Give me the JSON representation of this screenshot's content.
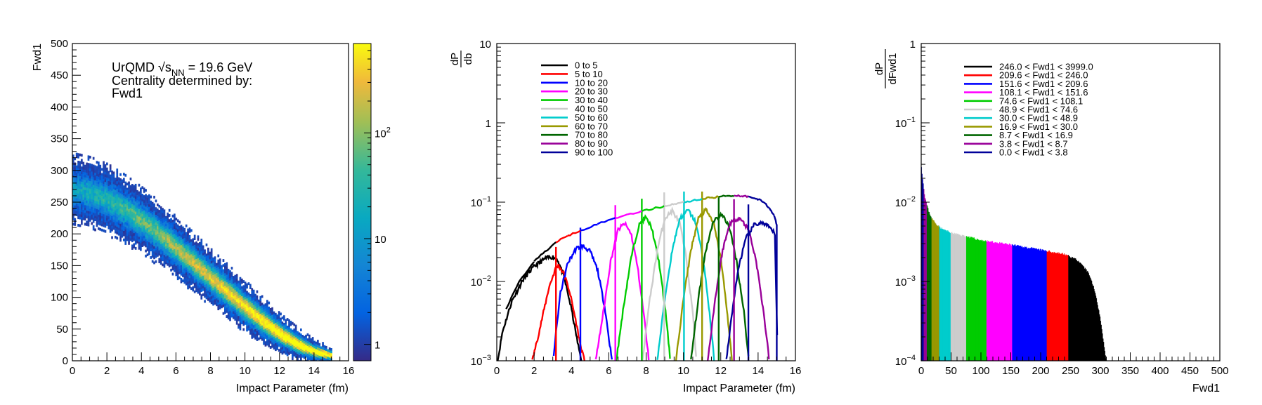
{
  "chart_data": [
    {
      "type": "heatmap",
      "xlabel": "Impact Parameter (fm)",
      "ylabel": "Fwd1",
      "xlim": [
        0,
        16
      ],
      "ylim": [
        0,
        500
      ],
      "x_ticks": [
        "0",
        "2",
        "4",
        "6",
        "8",
        "10",
        "12",
        "14",
        "16"
      ],
      "y_ticks": [
        "0",
        "50",
        "100",
        "150",
        "200",
        "250",
        "300",
        "350",
        "400",
        "450",
        "500"
      ],
      "annotation": {
        "line1_prefix": "UrQMD ",
        "sqrt_s": "s",
        "sub": "NN",
        "line1_suffix": " = 19.6 GeV",
        "line2": "Centrality determined by:",
        "line3": "Fwd1"
      },
      "colorbar": {
        "scale": "log",
        "range": [
          0.7,
          700
        ],
        "ticks": [
          {
            "v": 1,
            "label": "1"
          },
          {
            "v": 10,
            "label": "10"
          },
          {
            "v": 100,
            "base": "10",
            "exp": "2"
          }
        ]
      },
      "band": {
        "b": [
          0,
          1,
          2,
          3,
          4,
          5,
          6,
          7,
          8,
          9,
          10,
          11,
          12,
          13,
          14,
          15
        ],
        "center": [
          272,
          266,
          255,
          240,
          222,
          202,
          179,
          156,
          132,
          109,
          86,
          64,
          44,
          28,
          16,
          10
        ],
        "half_width": [
          30,
          30,
          30,
          29,
          28,
          27,
          26,
          25,
          24,
          23,
          22,
          20,
          17,
          14,
          10,
          7
        ]
      }
    },
    {
      "type": "line",
      "scale_y": "log",
      "xlabel": "Impact Parameter (fm)",
      "ylabel_num": "dP",
      "ylabel_den": "db",
      "xlim": [
        0,
        16
      ],
      "ylim": [
        0.001,
        10
      ],
      "x_ticks": [
        "0",
        "2",
        "4",
        "6",
        "8",
        "10",
        "12",
        "14",
        "16"
      ],
      "y_ticks": [
        {
          "v": 0.001,
          "base": "10",
          "exp": "−3"
        },
        {
          "v": 0.01,
          "base": "10",
          "exp": "−2"
        },
        {
          "v": 0.1,
          "base": "10",
          "exp": "−1"
        },
        {
          "v": 1,
          "label": "1"
        },
        {
          "v": 10,
          "label": "10"
        }
      ],
      "legend_position": "top-left",
      "series": [
        {
          "name": "0 to 5",
          "color": "#000000",
          "points": [
            [
              0.05,
              0.001
            ],
            [
              0.3,
              0.0023
            ],
            [
              0.8,
              0.0056
            ],
            [
              1.4,
              0.0105
            ],
            [
              2.0,
              0.0155
            ],
            [
              2.6,
              0.0195
            ],
            [
              3.0,
              0.0205
            ],
            [
              3.25,
              0.019
            ],
            [
              3.6,
              0.0115
            ],
            [
              4.0,
              0.0045
            ],
            [
              4.35,
              0.0016
            ],
            [
              4.55,
              0.001
            ]
          ]
        },
        {
          "name": "5 to 10",
          "color": "#ff0000",
          "points": [
            [
              1.9,
              0.001
            ],
            [
              2.3,
              0.0025
            ],
            [
              2.8,
              0.0085
            ],
            [
              3.15,
              0.0145
            ],
            [
              3.3,
              0.016
            ],
            [
              3.6,
              0.0125
            ],
            [
              3.9,
              0.0075
            ],
            [
              4.2,
              0.0035
            ],
            [
              4.5,
              0.0015
            ],
            [
              4.7,
              0.001
            ]
          ]
        },
        {
          "name": "10 to 20",
          "color": "#0000ff",
          "points": [
            [
              3.05,
              0.0012
            ],
            [
              3.4,
              0.007
            ],
            [
              3.8,
              0.017
            ],
            [
              4.25,
              0.026
            ],
            [
              4.6,
              0.028
            ],
            [
              5.0,
              0.024
            ],
            [
              5.4,
              0.014
            ],
            [
              5.8,
              0.0045
            ],
            [
              6.05,
              0.0016
            ],
            [
              6.2,
              0.001
            ]
          ]
        },
        {
          "name": "20 to 30",
          "color": "#ff00ff",
          "points": [
            [
              5.3,
              0.001
            ],
            [
              5.7,
              0.004
            ],
            [
              6.1,
              0.018
            ],
            [
              6.5,
              0.045
            ],
            [
              6.85,
              0.054
            ],
            [
              7.2,
              0.04
            ],
            [
              7.55,
              0.015
            ],
            [
              7.9,
              0.0035
            ],
            [
              8.15,
              0.001
            ]
          ]
        },
        {
          "name": "30 to 40",
          "color": "#00cc00",
          "points": [
            [
              6.4,
              0.001
            ],
            [
              6.8,
              0.005
            ],
            [
              7.2,
              0.02
            ],
            [
              7.6,
              0.05
            ],
            [
              7.95,
              0.065
            ],
            [
              8.3,
              0.048
            ],
            [
              8.7,
              0.017
            ],
            [
              9.05,
              0.004
            ],
            [
              9.3,
              0.001
            ]
          ]
        },
        {
          "name": "40 to 50",
          "color": "#cccccc",
          "points": [
            [
              7.8,
              0.001
            ],
            [
              8.2,
              0.006
            ],
            [
              8.6,
              0.025
            ],
            [
              9.0,
              0.062
            ],
            [
              9.4,
              0.078
            ],
            [
              9.8,
              0.055
            ],
            [
              10.15,
              0.02
            ],
            [
              10.5,
              0.004
            ],
            [
              10.7,
              0.001
            ]
          ]
        },
        {
          "name": "50 to 60",
          "color": "#00cccc",
          "points": [
            [
              8.6,
              0.001
            ],
            [
              9.0,
              0.006
            ],
            [
              9.4,
              0.025
            ],
            [
              9.8,
              0.062
            ],
            [
              10.25,
              0.08
            ],
            [
              10.65,
              0.056
            ],
            [
              11.05,
              0.02
            ],
            [
              11.4,
              0.004
            ],
            [
              11.65,
              0.001
            ]
          ]
        },
        {
          "name": "60 to 70",
          "color": "#999900",
          "points": [
            [
              9.6,
              0.001
            ],
            [
              10.0,
              0.006
            ],
            [
              10.4,
              0.025
            ],
            [
              10.8,
              0.062
            ],
            [
              11.2,
              0.08
            ],
            [
              11.6,
              0.056
            ],
            [
              12.0,
              0.02
            ],
            [
              12.35,
              0.004
            ],
            [
              12.6,
              0.001
            ]
          ]
        },
        {
          "name": "70 to 80",
          "color": "#006600",
          "points": [
            [
              10.4,
              0.001
            ],
            [
              10.8,
              0.006
            ],
            [
              11.2,
              0.025
            ],
            [
              11.6,
              0.058
            ],
            [
              12.05,
              0.07
            ],
            [
              12.45,
              0.05
            ],
            [
              12.85,
              0.018
            ],
            [
              13.25,
              0.004
            ],
            [
              13.5,
              0.001
            ]
          ]
        },
        {
          "name": "80 to 90",
          "color": "#990099",
          "points": [
            [
              11.3,
              0.001
            ],
            [
              11.7,
              0.006
            ],
            [
              12.1,
              0.025
            ],
            [
              12.5,
              0.055
            ],
            [
              13.0,
              0.064
            ],
            [
              13.5,
              0.045
            ],
            [
              13.9,
              0.018
            ],
            [
              14.3,
              0.004
            ],
            [
              14.6,
              0.001
            ]
          ]
        },
        {
          "name": "90 to 100",
          "color": "#000099",
          "points": [
            [
              12.3,
              0.001
            ],
            [
              12.6,
              0.004
            ],
            [
              12.95,
              0.015
            ],
            [
              13.35,
              0.035
            ],
            [
              13.8,
              0.052
            ],
            [
              14.2,
              0.055
            ],
            [
              14.6,
              0.048
            ],
            [
              14.9,
              0.04
            ],
            [
              15.05,
              0.001
            ]
          ]
        }
      ],
      "bin_edges": [
        {
          "x": 3.17,
          "color": "#ff0000",
          "top": 0.016
        },
        {
          "x": 4.48,
          "color": "#0000ff",
          "top": 0.028
        },
        {
          "x": 6.35,
          "color": "#ff00ff",
          "top": 0.054
        },
        {
          "x": 7.77,
          "color": "#00cc00",
          "top": 0.065
        },
        {
          "x": 8.97,
          "color": "#cccccc",
          "top": 0.078
        },
        {
          "x": 10.03,
          "color": "#00cccc",
          "top": 0.08
        },
        {
          "x": 11.0,
          "color": "#999900",
          "top": 0.08
        },
        {
          "x": 11.89,
          "color": "#006600",
          "top": 0.07
        },
        {
          "x": 12.71,
          "color": "#990099",
          "top": 0.064
        },
        {
          "x": 13.48,
          "color": "#000099",
          "top": 0.055
        }
      ],
      "envelope": [
        {
          "x": 0.5,
          "y": 0.0045,
          "color": "#000000"
        },
        {
          "x": 1.2,
          "y": 0.01,
          "color": "#000000"
        },
        {
          "x": 2.0,
          "y": 0.018,
          "color": "#000000"
        },
        {
          "x": 2.6,
          "y": 0.024,
          "color": "#000000"
        },
        {
          "x": 3.17,
          "y": 0.031,
          "color": "#000000"
        },
        {
          "x": 3.8,
          "y": 0.038,
          "color": "#ff0000"
        },
        {
          "x": 4.48,
          "y": 0.044,
          "color": "#ff0000"
        },
        {
          "x": 5.4,
          "y": 0.053,
          "color": "#0000ff"
        },
        {
          "x": 6.35,
          "y": 0.063,
          "color": "#0000ff"
        },
        {
          "x": 7.0,
          "y": 0.07,
          "color": "#ff00ff"
        },
        {
          "x": 7.77,
          "y": 0.077,
          "color": "#ff00ff"
        },
        {
          "x": 8.4,
          "y": 0.083,
          "color": "#00cc00"
        },
        {
          "x": 8.97,
          "y": 0.089,
          "color": "#00cc00"
        },
        {
          "x": 9.5,
          "y": 0.095,
          "color": "#cccccc"
        },
        {
          "x": 10.03,
          "y": 0.1,
          "color": "#cccccc"
        },
        {
          "x": 10.5,
          "y": 0.105,
          "color": "#00cccc"
        },
        {
          "x": 11.0,
          "y": 0.11,
          "color": "#00cccc"
        },
        {
          "x": 11.45,
          "y": 0.114,
          "color": "#999900"
        },
        {
          "x": 11.89,
          "y": 0.117,
          "color": "#999900"
        },
        {
          "x": 12.3,
          "y": 0.12,
          "color": "#006600"
        },
        {
          "x": 12.71,
          "y": 0.121,
          "color": "#006600"
        },
        {
          "x": 13.1,
          "y": 0.12,
          "color": "#990099"
        },
        {
          "x": 13.48,
          "y": 0.118,
          "color": "#990099"
        },
        {
          "x": 13.9,
          "y": 0.112,
          "color": "#000099"
        },
        {
          "x": 14.3,
          "y": 0.1,
          "color": "#000099"
        },
        {
          "x": 14.6,
          "y": 0.085,
          "color": "#000099"
        },
        {
          "x": 14.85,
          "y": 0.068,
          "color": "#000099"
        },
        {
          "x": 15.0,
          "y": 0.052,
          "color": "#000099"
        }
      ]
    },
    {
      "type": "bar",
      "scale_y": "log",
      "xlabel": "Fwd1",
      "ylabel_num": "dP",
      "ylabel_den": "dFwd1",
      "xlim": [
        0,
        500
      ],
      "ylim": [
        0.0001,
        1
      ],
      "x_ticks": [
        "0",
        "50",
        "100",
        "150",
        "200",
        "250",
        "300",
        "350",
        "400",
        "450",
        "500"
      ],
      "y_ticks": [
        {
          "v": 0.0001,
          "base": "10",
          "exp": "−4"
        },
        {
          "v": 0.001,
          "base": "10",
          "exp": "−3"
        },
        {
          "v": 0.01,
          "base": "10",
          "exp": "−2"
        },
        {
          "v": 0.1,
          "base": "10",
          "exp": "−1"
        },
        {
          "v": 1,
          "label": "1"
        }
      ],
      "legend_position": "top-left",
      "series": [
        {
          "name": "246.0 < Fwd1 < 3999.0",
          "color": "#000000",
          "range": [
            246.0,
            310.0
          ]
        },
        {
          "name": "209.6 < Fwd1 < 246.0",
          "color": "#ff0000",
          "range": [
            209.6,
            246.0
          ]
        },
        {
          "name": "151.6 < Fwd1 < 209.6",
          "color": "#0000ff",
          "range": [
            151.6,
            209.6
          ]
        },
        {
          "name": "108.1 < Fwd1 < 151.6",
          "color": "#ff00ff",
          "range": [
            108.1,
            151.6
          ]
        },
        {
          "name": "74.6 < Fwd1 < 108.1",
          "color": "#00cc00",
          "range": [
            74.6,
            108.1
          ]
        },
        {
          "name": "48.9 < Fwd1 < 74.6",
          "color": "#cccccc",
          "range": [
            48.9,
            74.6
          ]
        },
        {
          "name": "30.0 < Fwd1 < 48.9",
          "color": "#00cccc",
          "range": [
            30.0,
            48.9
          ]
        },
        {
          "name": "16.9 < Fwd1 < 30.0",
          "color": "#999900",
          "range": [
            16.9,
            30.0
          ]
        },
        {
          "name": "8.7 < Fwd1 < 16.9",
          "color": "#006600",
          "range": [
            8.7,
            16.9
          ]
        },
        {
          "name": "3.8 < Fwd1 < 8.7",
          "color": "#990099",
          "range": [
            3.8,
            8.7
          ]
        },
        {
          "name": "0.0 < Fwd1 < 3.8",
          "color": "#000099",
          "range": [
            0.0,
            3.8
          ]
        }
      ],
      "distribution": {
        "x": [
          0,
          1,
          2,
          4,
          6,
          9,
          13,
          18,
          25,
          35,
          50,
          75,
          100,
          150,
          200,
          240,
          260,
          280,
          290,
          300,
          305,
          310
        ],
        "y": [
          0.031,
          0.026,
          0.021,
          0.016,
          0.012,
          0.0095,
          0.0075,
          0.0062,
          0.0053,
          0.0046,
          0.0041,
          0.0037,
          0.0033,
          0.0029,
          0.0025,
          0.0022,
          0.0019,
          0.0013,
          0.0008,
          0.00035,
          0.00018,
          0.0001
        ]
      }
    }
  ]
}
